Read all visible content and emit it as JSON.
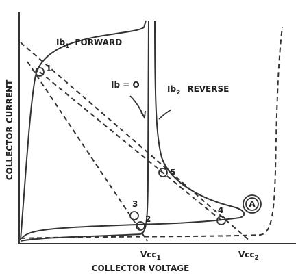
{
  "curves": [
    {
      "main": "Ib",
      "sub": "1",
      "rest": "FORWARD"
    },
    {
      "main": "Ib = O"
    },
    {
      "main": "Ib",
      "sub": "2",
      "rest": "REVERSE"
    }
  ],
  "axes": {
    "y_label": "COLLECTOR CURRENT",
    "x_label": "COLLECTOR VOLTAGE"
  },
  "supply": [
    {
      "main": "Vcc",
      "sub": "1"
    },
    {
      "main": "Vcc",
      "sub": "2"
    }
  ],
  "points": [
    "1",
    "2",
    "3",
    "4",
    "5"
  ],
  "callout": "A"
}
